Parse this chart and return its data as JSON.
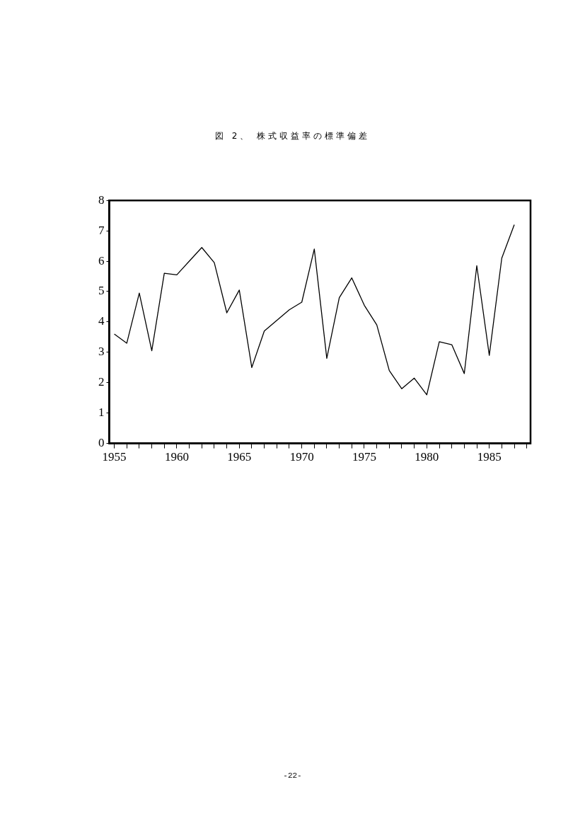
{
  "chart_data": {
    "type": "line",
    "title": "図 2、 株式収益率の標準偏差",
    "x": [
      1955,
      1956,
      1957,
      1958,
      1959,
      1960,
      1961,
      1962,
      1963,
      1964,
      1965,
      1966,
      1967,
      1968,
      1969,
      1970,
      1971,
      1972,
      1973,
      1974,
      1975,
      1976,
      1977,
      1978,
      1979,
      1980,
      1981,
      1982,
      1983,
      1984,
      1985,
      1986,
      1987
    ],
    "series": [
      {
        "color": "#000000",
        "values": [
          3.6,
          3.3,
          4.95,
          3.05,
          5.6,
          5.55,
          6.0,
          6.45,
          5.95,
          4.3,
          5.05,
          2.5,
          3.7,
          4.05,
          4.4,
          4.65,
          6.4,
          2.8,
          4.8,
          5.45,
          4.55,
          3.9,
          2.4,
          1.8,
          2.15,
          1.6,
          3.35,
          3.25,
          2.3,
          5.85,
          2.9,
          6.1,
          7.2
        ]
      }
    ],
    "xlim": [
      1954.6,
      1988.3
    ],
    "xticks": [
      1955,
      {
        "value": 1956,
        "label": null
      },
      {
        "value": 1957,
        "label": null
      },
      {
        "value": 1958,
        "label": null
      },
      {
        "value": 1959,
        "label": null
      },
      1960,
      {
        "value": 1961,
        "label": null
      },
      {
        "value": 1962,
        "label": null
      },
      {
        "value": 1963,
        "label": null
      },
      {
        "value": 1964,
        "label": null
      },
      1965,
      {
        "value": 1966,
        "label": null
      },
      {
        "value": 1967,
        "label": null
      },
      {
        "value": 1968,
        "label": null
      },
      {
        "value": 1969,
        "label": null
      },
      1970,
      {
        "value": 1971,
        "label": null
      },
      {
        "value": 1972,
        "label": null
      },
      {
        "value": 1973,
        "label": null
      },
      {
        "value": 1974,
        "label": null
      },
      1975,
      {
        "value": 1976,
        "label": null
      },
      {
        "value": 1977,
        "label": null
      },
      {
        "value": 1978,
        "label": null
      },
      {
        "value": 1979,
        "label": null
      },
      1980,
      {
        "value": 1981,
        "label": null
      },
      {
        "value": 1982,
        "label": null
      },
      {
        "value": 1983,
        "label": null
      },
      {
        "value": 1984,
        "label": null
      },
      1985,
      {
        "value": 1986,
        "label": null
      },
      {
        "value": 1987,
        "label": null
      },
      {
        "value": 1988,
        "label": null
      }
    ],
    "ylim": [
      0,
      8
    ],
    "yticks": [
      0,
      1,
      2,
      3,
      4,
      5,
      6,
      7,
      8
    ],
    "grid": false,
    "legend": false,
    "marker": "none",
    "line_style": "solid",
    "annotations": [
      "-22-"
    ]
  }
}
